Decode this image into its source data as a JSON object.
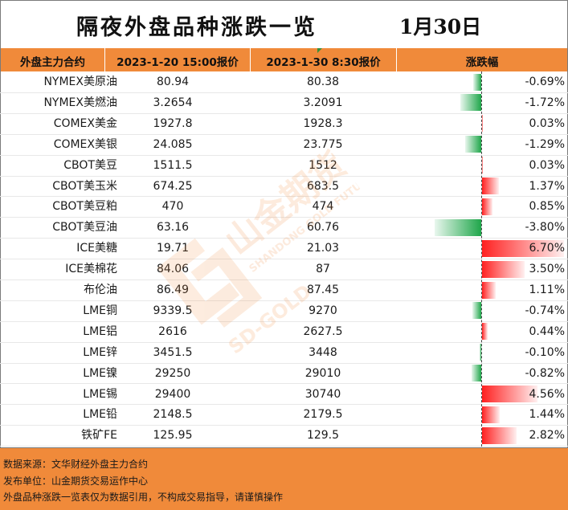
{
  "header": {
    "title": "隔夜外盘品种涨跌一览",
    "date": "1月30日"
  },
  "columns": {
    "name": "外盘主力合约",
    "old_price": "2023-1-20 15:00报价",
    "new_price": "2023-1-30 8:30报价",
    "change": "涨跌幅"
  },
  "rows": [
    {
      "name": "NYMEX美原油",
      "old": "80.94",
      "new": "80.38",
      "change": "-0.69%",
      "pct": -0.69
    },
    {
      "name": "NYMEX美燃油",
      "old": "3.2654",
      "new": "3.2091",
      "change": "-1.72%",
      "pct": -1.72
    },
    {
      "name": "COMEX美金",
      "old": "1927.8",
      "new": "1928.3",
      "change": "0.03%",
      "pct": 0.03
    },
    {
      "name": "COMEX美银",
      "old": "24.085",
      "new": "23.775",
      "change": "-1.29%",
      "pct": -1.29
    },
    {
      "name": "CBOT美豆",
      "old": "1511.5",
      "new": "1512",
      "change": "0.03%",
      "pct": 0.03
    },
    {
      "name": "CBOT美玉米",
      "old": "674.25",
      "new": "683.5",
      "change": "1.37%",
      "pct": 1.37
    },
    {
      "name": "CBOT美豆粕",
      "old": "470",
      "new": "474",
      "change": "0.85%",
      "pct": 0.85
    },
    {
      "name": "CBOT美豆油",
      "old": "63.16",
      "new": "60.76",
      "change": "-3.80%",
      "pct": -3.8
    },
    {
      "name": "ICE美糖",
      "old": "19.71",
      "new": "21.03",
      "change": "6.70%",
      "pct": 6.7
    },
    {
      "name": "ICE美棉花",
      "old": "84.06",
      "new": "87",
      "change": "3.50%",
      "pct": 3.5
    },
    {
      "name": "布伦油",
      "old": "86.49",
      "new": "87.45",
      "change": "1.11%",
      "pct": 1.11
    },
    {
      "name": "LME铜",
      "old": "9339.5",
      "new": "9270",
      "change": "-0.74%",
      "pct": -0.74
    },
    {
      "name": "LME铝",
      "old": "2616",
      "new": "2627.5",
      "change": "0.44%",
      "pct": 0.44
    },
    {
      "name": "LME锌",
      "old": "3451.5",
      "new": "3448",
      "change": "-0.10%",
      "pct": -0.1
    },
    {
      "name": "LME镍",
      "old": "29250",
      "new": "29010",
      "change": "-0.82%",
      "pct": -0.82
    },
    {
      "name": "LME锡",
      "old": "29400",
      "new": "30740",
      "change": "4.56%",
      "pct": 4.56
    },
    {
      "name": "LME铅",
      "old": "2148.5",
      "new": "2179.5",
      "change": "1.44%",
      "pct": 1.44
    },
    {
      "name": "铁矿FE",
      "old": "125.95",
      "new": "129.5",
      "change": "2.82%",
      "pct": 2.82
    }
  ],
  "colors": {
    "header_bg": "#f08a3a",
    "up": "#ff2020",
    "down": "#1fa64a",
    "watermark": "#f08a3a"
  },
  "watermark": {
    "brand_cn": "山金期货",
    "brand_en": "SHANDONG GOLD FUTURES",
    "brand_short": "SD-GOLD"
  },
  "footer": {
    "source": "数据来源：文华财经外盘主力合约",
    "publisher": "发布单位：山金期货交易运作中心",
    "disclaimer": "外盘品种涨跌一览表仅为数据引用，不构成交易指导，请谨慎操作"
  }
}
